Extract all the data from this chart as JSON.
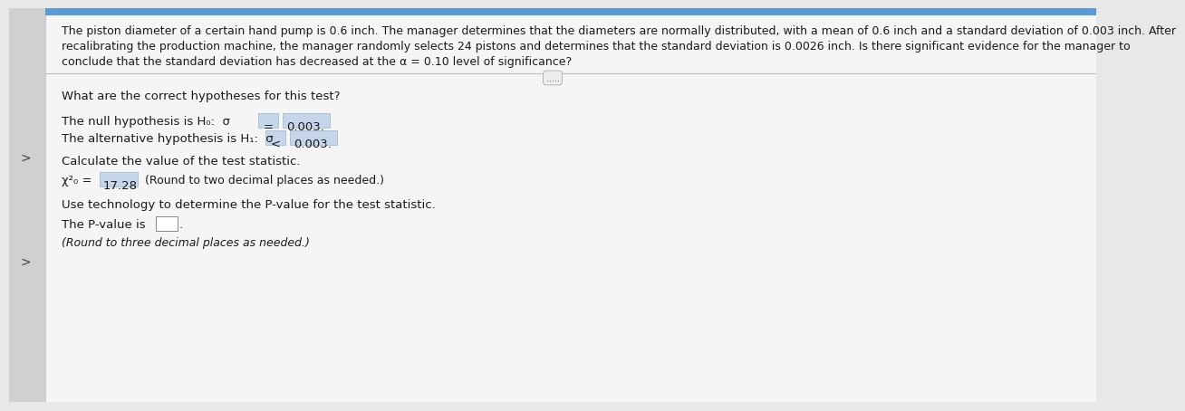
{
  "background_color": "#e8e8e8",
  "content_bg": "#f5f5f5",
  "header_bg": "#5b9bd5",
  "arrow_color": "#444444",
  "paragraph_text_lines": [
    "The piston diameter of a certain hand pump is 0.6 inch. The manager determines that the diameters are normally distributed, with a mean of 0.6 inch and a standard deviation of 0.003 inch. After",
    "recalibrating the production machine, the manager randomly selects 24 pistons and determines that the standard deviation is 0.0026 inch. Is there significant evidence for the manager to",
    "conclude that the standard deviation has decreased at the α = 0.10 level of significance?"
  ],
  "section1_label": "What are the correct hypotheses for this test?",
  "null_hyp_prefix": "The null hypothesis is H₀:  σ",
  "null_hyp_op_box": "=",
  "null_hyp_val_box": "0.003.",
  "alt_hyp_prefix": "The alternative hypothesis is H₁:  σ",
  "alt_hyp_op_box": "<",
  "alt_hyp_val_box": "0.003.",
  "section2_label": "Calculate the value of the test statistic.",
  "chi_prefix": "χ²₀ = ",
  "chi_value": "17.28",
  "chi_suffix": " (Round to two decimal places as needed.)",
  "section3_label": "Use technology to determine the P-value for the test statistic.",
  "pvalue_prefix": "The P-value is ",
  "pvalue_suffix": ".",
  "pvalue_round_note": "(Round to three decimal places as needed.)",
  "dots_text": ".....",
  "font_size_para": 9.0,
  "font_size_body": 9.5,
  "font_size_small": 9.0,
  "highlight_color": "#c5d5ea",
  "box_border_color": "#9ab3cc",
  "text_color": "#1a1a1a",
  "pvalue_box_color": "#ffffff"
}
